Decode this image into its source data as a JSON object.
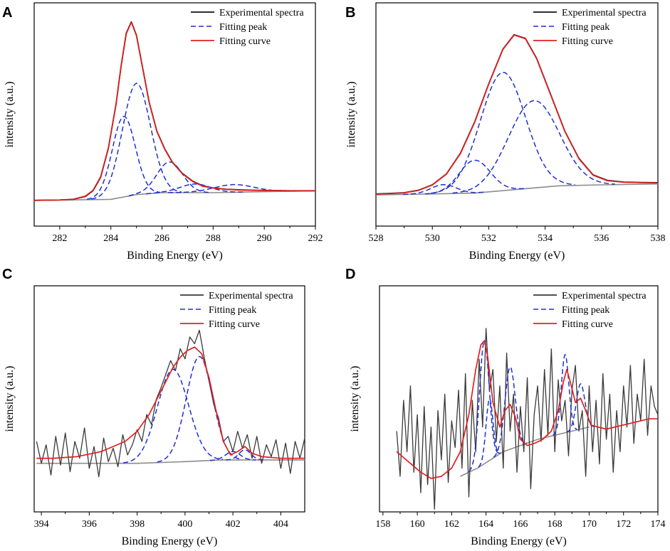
{
  "colors": {
    "experimental": "#333333",
    "fitting_peak": "#1f2fd0",
    "fitting_curve": "#e02020",
    "baseline": "#8c8c8c",
    "axis": "#000000"
  },
  "chart_data": [
    {
      "panel": "A",
      "type": "line",
      "title": "",
      "xlabel": "Binding Energy (eV)",
      "ylabel": "intensity (a.u.)",
      "xlim": [
        281,
        292
      ],
      "ylim": [
        0,
        1.0
      ],
      "xticks": [
        282,
        284,
        286,
        288,
        290,
        292
      ],
      "legend": [
        "Experimental spectra",
        "Fitting peak",
        "Fitting curve"
      ],
      "legend_position": "top-right",
      "baseline": {
        "x": [
          281,
          284,
          285,
          286,
          288,
          292
        ],
        "y": [
          0.06,
          0.065,
          0.09,
          0.1,
          0.1,
          0.11
        ]
      },
      "peaks": [
        {
          "center": 284.5,
          "height": 0.42,
          "sigma": 0.45
        },
        {
          "center": 285.0,
          "height": 0.58,
          "sigma": 0.55
        },
        {
          "center": 286.3,
          "height": 0.16,
          "sigma": 0.5
        },
        {
          "center": 287.3,
          "height": 0.045,
          "sigma": 0.6
        },
        {
          "center": 288.8,
          "height": 0.04,
          "sigma": 0.8
        }
      ],
      "series": [
        {
          "name": "Experimental spectra",
          "style": "solid-black",
          "x": [
            281.0,
            282.0,
            282.5,
            283.0,
            283.3,
            283.6,
            283.9,
            284.2,
            284.4,
            284.6,
            284.8,
            285.0,
            285.2,
            285.5,
            285.8,
            286.1,
            286.4,
            286.8,
            287.2,
            287.6,
            288.0,
            288.5,
            289.0,
            289.5,
            290.0,
            291.0,
            292.0
          ],
          "y": [
            0.06,
            0.062,
            0.065,
            0.08,
            0.11,
            0.18,
            0.33,
            0.56,
            0.76,
            0.93,
            0.99,
            0.92,
            0.78,
            0.57,
            0.42,
            0.33,
            0.26,
            0.2,
            0.16,
            0.135,
            0.125,
            0.118,
            0.115,
            0.113,
            0.112,
            0.11,
            0.11
          ]
        },
        {
          "name": "Fitting curve",
          "style": "solid-red",
          "x": [
            281.0,
            282.0,
            282.5,
            283.0,
            283.3,
            283.6,
            283.9,
            284.2,
            284.4,
            284.6,
            284.8,
            285.0,
            285.2,
            285.5,
            285.8,
            286.1,
            286.4,
            286.8,
            287.2,
            287.6,
            288.0,
            288.5,
            289.0,
            289.5,
            290.0,
            291.0,
            292.0
          ],
          "y": [
            0.06,
            0.062,
            0.065,
            0.082,
            0.112,
            0.183,
            0.332,
            0.558,
            0.758,
            0.927,
            0.988,
            0.918,
            0.778,
            0.568,
            0.418,
            0.328,
            0.258,
            0.198,
            0.158,
            0.133,
            0.124,
            0.117,
            0.114,
            0.112,
            0.111,
            0.11,
            0.11
          ]
        }
      ]
    },
    {
      "panel": "B",
      "type": "line",
      "title": "",
      "xlabel": "Binding Energy (eV)",
      "ylabel": "intensity (a.u.)",
      "xlim": [
        528,
        538
      ],
      "ylim": [
        0,
        1.0
      ],
      "xticks": [
        528,
        530,
        532,
        534,
        536,
        538
      ],
      "legend": [
        "Experimental spectra",
        "Fitting peak",
        "Fitting curve"
      ],
      "legend_position": "top-right",
      "baseline": {
        "x": [
          528,
          530,
          531.5,
          533,
          534.5,
          536,
          538
        ],
        "y": [
          0.07,
          0.075,
          0.08,
          0.1,
          0.12,
          0.125,
          0.13
        ]
      },
      "peaks": [
        {
          "center": 530.4,
          "height": 0.05,
          "sigma": 0.45
        },
        {
          "center": 531.5,
          "height": 0.18,
          "sigma": 0.55
        },
        {
          "center": 532.5,
          "height": 0.65,
          "sigma": 0.8
        },
        {
          "center": 533.6,
          "height": 0.48,
          "sigma": 0.9
        }
      ],
      "series": [
        {
          "name": "Experimental spectra",
          "style": "solid-black",
          "x": [
            528.0,
            528.5,
            529.0,
            529.5,
            530.0,
            530.5,
            531.0,
            531.5,
            532.0,
            532.5,
            532.9,
            533.3,
            533.7,
            534.2,
            534.7,
            535.2,
            535.7,
            536.2,
            536.8,
            537.4,
            538.0
          ],
          "y": [
            0.075,
            0.078,
            0.082,
            0.095,
            0.125,
            0.185,
            0.3,
            0.47,
            0.68,
            0.87,
            0.95,
            0.93,
            0.82,
            0.62,
            0.42,
            0.27,
            0.18,
            0.15,
            0.14,
            0.138,
            0.137
          ]
        },
        {
          "name": "Fitting curve",
          "style": "solid-red",
          "x": [
            528.0,
            528.5,
            529.0,
            529.5,
            530.0,
            530.5,
            531.0,
            531.5,
            532.0,
            532.5,
            532.9,
            533.3,
            533.7,
            534.2,
            534.7,
            535.2,
            535.7,
            536.2,
            536.8,
            537.4,
            538.0
          ],
          "y": [
            0.074,
            0.077,
            0.081,
            0.094,
            0.124,
            0.184,
            0.298,
            0.468,
            0.678,
            0.868,
            0.948,
            0.928,
            0.818,
            0.618,
            0.418,
            0.268,
            0.178,
            0.148,
            0.139,
            0.137,
            0.136
          ]
        }
      ]
    },
    {
      "panel": "C",
      "type": "line",
      "title": "",
      "xlabel": "Binding Energy (eV)",
      "ylabel": "intensity (a.u.)",
      "xlim": [
        393.7,
        405
      ],
      "ylim": [
        0,
        1.0
      ],
      "xticks": [
        394,
        396,
        398,
        400,
        402,
        404
      ],
      "legend": [
        "Experimental spectra",
        "Fitting peak",
        "Fitting curve"
      ],
      "legend_position": "top-right",
      "baseline": {
        "x": [
          393.8,
          398,
          400,
          401.5,
          405
        ],
        "y": [
          0.17,
          0.17,
          0.18,
          0.19,
          0.19
        ]
      },
      "peaks": [
        {
          "center": 399.5,
          "height": 0.55,
          "sigma": 0.65
        },
        {
          "center": 400.6,
          "height": 0.62,
          "sigma": 0.55
        },
        {
          "center": 402.0,
          "height": 0.05,
          "sigma": 0.3
        },
        {
          "center": 402.5,
          "height": 0.06,
          "sigma": 0.25
        }
      ],
      "series": [
        {
          "name": "Experimental spectra",
          "style": "noisy-gray",
          "x": [
            393.8,
            394.0,
            394.2,
            394.4,
            394.6,
            394.8,
            395.0,
            395.2,
            395.4,
            395.6,
            395.8,
            396.0,
            396.2,
            396.4,
            396.6,
            396.8,
            397.0,
            397.2,
            397.4,
            397.6,
            397.8,
            398.0,
            398.2,
            398.4,
            398.6,
            398.8,
            399.0,
            399.2,
            399.4,
            399.6,
            399.8,
            400.0,
            400.2,
            400.4,
            400.6,
            400.8,
            401.0,
            401.2,
            401.4,
            401.6,
            401.8,
            402.0,
            402.2,
            402.4,
            402.6,
            402.8,
            403.0,
            403.2,
            403.4,
            403.6,
            403.8,
            404.0,
            404.2,
            404.4,
            404.6,
            404.8,
            405.0
          ],
          "y": [
            0.3,
            0.17,
            0.28,
            0.1,
            0.33,
            0.16,
            0.35,
            0.12,
            0.3,
            0.2,
            0.38,
            0.14,
            0.27,
            0.09,
            0.32,
            0.18,
            0.26,
            0.15,
            0.34,
            0.22,
            0.28,
            0.37,
            0.3,
            0.46,
            0.4,
            0.55,
            0.62,
            0.7,
            0.78,
            0.72,
            0.85,
            0.79,
            0.92,
            0.88,
            0.96,
            0.8,
            0.66,
            0.52,
            0.44,
            0.3,
            0.33,
            0.24,
            0.36,
            0.26,
            0.34,
            0.2,
            0.33,
            0.17,
            0.28,
            0.21,
            0.31,
            0.14,
            0.29,
            0.11,
            0.3,
            0.2,
            0.32
          ]
        },
        {
          "name": "Fitting curve",
          "style": "solid-red",
          "x": [
            393.8,
            394.5,
            395.5,
            396.5,
            397.5,
            398.0,
            398.5,
            399.0,
            399.5,
            399.8,
            400.1,
            400.4,
            400.7,
            401.0,
            401.3,
            401.6,
            401.9,
            402.2,
            402.5,
            402.8,
            403.2,
            404.0,
            405.0
          ],
          "y": [
            0.2,
            0.2,
            0.21,
            0.24,
            0.3,
            0.36,
            0.46,
            0.6,
            0.74,
            0.8,
            0.84,
            0.86,
            0.82,
            0.68,
            0.48,
            0.3,
            0.22,
            0.24,
            0.27,
            0.23,
            0.21,
            0.2,
            0.2
          ]
        }
      ]
    },
    {
      "panel": "D",
      "type": "line",
      "title": "",
      "xlabel": "Binding Energy (eV)",
      "ylabel": "intensity (a.u.)",
      "xlim": [
        157.8,
        174
      ],
      "ylim": [
        0,
        1.0
      ],
      "xticks": [
        158,
        160,
        162,
        164,
        166,
        168,
        170,
        172,
        174
      ],
      "legend": [
        "Experimental spectra",
        "Fitting peak",
        "Fitting curve"
      ],
      "legend_position": "top-right",
      "baseline": {
        "x": [
          162.5,
          163.5,
          165,
          167,
          169,
          170
        ],
        "y": [
          0.18,
          0.22,
          0.3,
          0.36,
          0.4,
          0.42
        ]
      },
      "peaks": [
        {
          "center": 163.9,
          "height": 0.6,
          "sigma": 0.28
        },
        {
          "center": 164.2,
          "height": 0.3,
          "sigma": 0.2
        },
        {
          "center": 165.4,
          "height": 0.4,
          "sigma": 0.3
        },
        {
          "center": 168.6,
          "height": 0.38,
          "sigma": 0.22
        },
        {
          "center": 169.5,
          "height": 0.22,
          "sigma": 0.25
        }
      ],
      "series": [
        {
          "name": "Experimental spectra",
          "style": "noisy-gray",
          "x": [
            158.8,
            159.0,
            159.2,
            159.4,
            159.6,
            159.8,
            160.0,
            160.2,
            160.4,
            160.6,
            160.8,
            161.0,
            161.2,
            161.4,
            161.6,
            161.8,
            162.0,
            162.2,
            162.4,
            162.6,
            162.8,
            163.0,
            163.2,
            163.4,
            163.6,
            163.8,
            164.0,
            164.2,
            164.4,
            164.6,
            164.8,
            165.0,
            165.2,
            165.4,
            165.6,
            165.8,
            166.0,
            166.2,
            166.4,
            166.6,
            166.8,
            167.0,
            167.2,
            167.4,
            167.6,
            167.8,
            168.0,
            168.2,
            168.4,
            168.6,
            168.8,
            169.0,
            169.2,
            169.4,
            169.6,
            169.8,
            170.0,
            170.2,
            170.4,
            170.6,
            170.8,
            171.0,
            171.2,
            171.4,
            171.6,
            171.8,
            172.0,
            172.2,
            172.4,
            172.6,
            172.8,
            173.0,
            173.2,
            173.4,
            173.6,
            173.8,
            174.0
          ],
          "y": [
            0.4,
            0.18,
            0.55,
            0.3,
            0.62,
            0.2,
            0.48,
            0.1,
            0.52,
            0.14,
            0.42,
            0.02,
            0.5,
            0.26,
            0.58,
            0.15,
            0.45,
            0.32,
            0.6,
            0.22,
            0.68,
            0.08,
            0.55,
            0.3,
            0.75,
            0.42,
            0.9,
            0.6,
            0.7,
            0.35,
            0.62,
            0.22,
            0.78,
            0.4,
            0.58,
            0.2,
            0.52,
            0.3,
            0.66,
            0.12,
            0.48,
            0.62,
            0.35,
            0.7,
            0.38,
            0.8,
            0.3,
            0.65,
            0.45,
            0.55,
            0.28,
            0.6,
            0.72,
            0.4,
            0.5,
            0.18,
            0.62,
            0.3,
            0.55,
            0.24,
            0.68,
            0.36,
            0.58,
            0.2,
            0.5,
            0.3,
            0.62,
            0.42,
            0.72,
            0.34,
            0.58,
            0.45,
            0.75,
            0.38,
            0.62,
            0.52,
            0.48
          ]
        },
        {
          "name": "Fitting curve",
          "style": "solid-red",
          "x": [
            158.8,
            159.5,
            160.2,
            160.8,
            161.4,
            162.0,
            162.5,
            163.0,
            163.4,
            163.7,
            163.9,
            164.1,
            164.4,
            164.8,
            165.1,
            165.4,
            165.7,
            166.0,
            166.4,
            166.8,
            167.3,
            167.8,
            168.2,
            168.5,
            168.7,
            168.9,
            169.2,
            169.5,
            169.8,
            170.1,
            170.5,
            171.0,
            171.5,
            172.0,
            172.5,
            173.0,
            173.5,
            174.0
          ],
          "y": [
            0.3,
            0.25,
            0.2,
            0.17,
            0.18,
            0.22,
            0.3,
            0.48,
            0.7,
            0.82,
            0.84,
            0.76,
            0.54,
            0.42,
            0.5,
            0.53,
            0.47,
            0.36,
            0.33,
            0.34,
            0.36,
            0.4,
            0.5,
            0.64,
            0.7,
            0.64,
            0.54,
            0.56,
            0.5,
            0.43,
            0.42,
            0.41,
            0.42,
            0.43,
            0.44,
            0.45,
            0.46,
            0.46
          ]
        }
      ]
    }
  ]
}
